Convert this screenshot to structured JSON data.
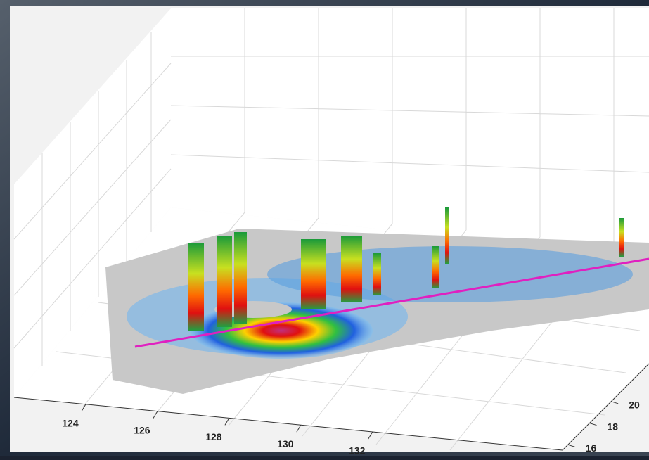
{
  "chart_data": {
    "type": "surface3d",
    "xticks": [
      124,
      126,
      128,
      130,
      132
    ],
    "xlim": [
      122,
      137.3
    ],
    "yticks": [
      16,
      18,
      20
    ],
    "ylim": [
      15.5,
      23.5
    ]
  }
}
